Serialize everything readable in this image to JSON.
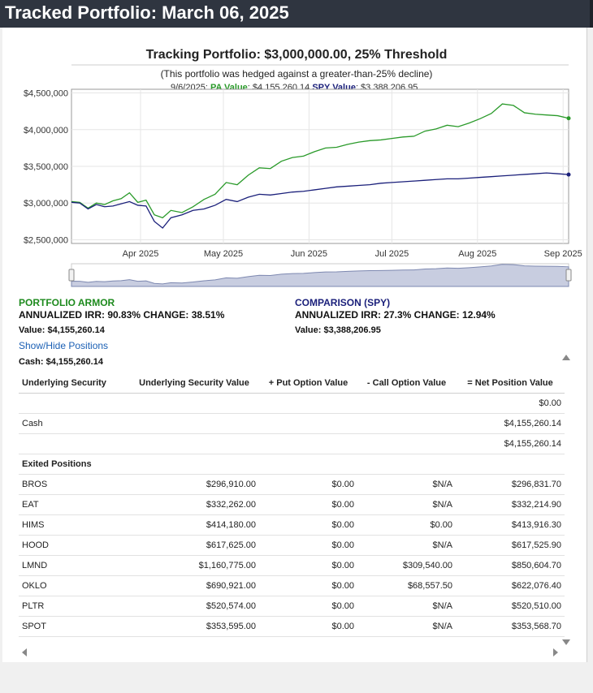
{
  "page": {
    "title": "Tracked Portfolio: March 06, 2025"
  },
  "chart": {
    "title": "Tracking Portfolio: $3,000,000.00, 25% Threshold",
    "subtitle": "(This portfolio was hedged against a greater-than-25% decline)",
    "tooltip": {
      "date": "9/6/2025:",
      "pa_label": "PA Value",
      "pa_value": ": $4,155,260.14",
      "spy_label": "SPY Value",
      "spy_value": ": $3,388,206.95"
    }
  },
  "chart_data": {
    "type": "line",
    "title": "Tracking Portfolio: $3,000,000.00, 25% Threshold",
    "xlabel": "",
    "ylabel": "",
    "x_ticks": [
      "Apr 2025",
      "May 2025",
      "Jun 2025",
      "Jul 2025",
      "Aug 2025",
      "Sep 2025"
    ],
    "y_ticks": [
      "$2,500,000",
      "$3,000,000",
      "$3,500,000",
      "$4,000,000",
      "$4,500,000"
    ],
    "ylim": [
      2450000,
      4550000
    ],
    "xlim": [
      0,
      180
    ],
    "series": [
      {
        "name": "Portfolio Armor",
        "color": "#2a9a2a",
        "x": [
          0,
          3,
          6,
          9,
          12,
          15,
          18,
          21,
          24,
          27,
          30,
          33,
          36,
          40,
          44,
          48,
          52,
          56,
          60,
          64,
          68,
          72,
          76,
          80,
          84,
          88,
          92,
          96,
          100,
          104,
          108,
          112,
          116,
          120,
          124,
          128,
          132,
          136,
          140,
          144,
          148,
          152,
          156,
          160,
          164,
          168,
          172,
          176,
          180
        ],
        "values": [
          3020000,
          3010000,
          2930000,
          3000000,
          2980000,
          3030000,
          3060000,
          3140000,
          3010000,
          3040000,
          2840000,
          2800000,
          2900000,
          2870000,
          2950000,
          3050000,
          3120000,
          3280000,
          3250000,
          3380000,
          3480000,
          3470000,
          3570000,
          3620000,
          3640000,
          3700000,
          3750000,
          3760000,
          3800000,
          3830000,
          3850000,
          3860000,
          3880000,
          3900000,
          3910000,
          3980000,
          4010000,
          4060000,
          4040000,
          4090000,
          4150000,
          4220000,
          4350000,
          4330000,
          4230000,
          4210000,
          4200000,
          4190000,
          4155260
        ]
      },
      {
        "name": "SPY",
        "color": "#1a1f7a",
        "x": [
          0,
          3,
          6,
          9,
          12,
          15,
          18,
          21,
          24,
          27,
          30,
          33,
          36,
          40,
          44,
          48,
          52,
          56,
          60,
          64,
          68,
          72,
          76,
          80,
          84,
          88,
          92,
          96,
          100,
          104,
          108,
          112,
          116,
          120,
          124,
          128,
          132,
          136,
          140,
          144,
          148,
          152,
          156,
          160,
          164,
          168,
          172,
          176,
          180
        ],
        "values": [
          3010000,
          3000000,
          2920000,
          2980000,
          2950000,
          2960000,
          2990000,
          3020000,
          2970000,
          2960000,
          2750000,
          2660000,
          2800000,
          2840000,
          2900000,
          2920000,
          2970000,
          3050000,
          3020000,
          3080000,
          3120000,
          3110000,
          3130000,
          3150000,
          3160000,
          3180000,
          3200000,
          3220000,
          3230000,
          3240000,
          3250000,
          3270000,
          3280000,
          3290000,
          3300000,
          3310000,
          3320000,
          3330000,
          3330000,
          3340000,
          3350000,
          3360000,
          3370000,
          3380000,
          3390000,
          3400000,
          3410000,
          3400000,
          3388207
        ]
      }
    ]
  },
  "legend": {
    "pa": {
      "title": "PORTFOLIO ARMOR",
      "irr": "ANNUALIZED IRR: 90.83% CHANGE: 38.51%",
      "value": "Value: $4,155,260.14"
    },
    "spy": {
      "title": "COMPARISON (SPY)",
      "irr": "ANNUALIZED IRR: 27.3% CHANGE: 12.94%",
      "value": "Value: $3,388,206.95"
    }
  },
  "show_hide_label": "Show/Hide Positions",
  "cash_summary": "Cash: $4,155,260.14",
  "table": {
    "headers": [
      "Underlying Security",
      "Underlying Security Value",
      "+ Put Option Value",
      "- Call Option Value",
      "= Net Position Value"
    ],
    "top_rows": [
      [
        "",
        "",
        "",
        "",
        "$0.00"
      ],
      [
        "Cash",
        "",
        "",
        "",
        "$4,155,260.14"
      ],
      [
        "",
        "",
        "",
        "",
        "$4,155,260.14"
      ]
    ],
    "section_label": "Exited Positions",
    "positions": [
      [
        "BROS",
        "$296,910.00",
        "$0.00",
        "$N/A",
        "$296,831.70"
      ],
      [
        "EAT",
        "$332,262.00",
        "$0.00",
        "$N/A",
        "$332,214.90"
      ],
      [
        "HIMS",
        "$414,180.00",
        "$0.00",
        "$0.00",
        "$413,916.30"
      ],
      [
        "HOOD",
        "$617,625.00",
        "$0.00",
        "$N/A",
        "$617,525.90"
      ],
      [
        "LMND",
        "$1,160,775.00",
        "$0.00",
        "$309,540.00",
        "$850,604.70"
      ],
      [
        "OKLO",
        "$690,921.00",
        "$0.00",
        "$68,557.50",
        "$622,076.40"
      ],
      [
        "PLTR",
        "$520,574.00",
        "$0.00",
        "$N/A",
        "$520,510.00"
      ],
      [
        "SPOT",
        "$353,595.00",
        "$0.00",
        "$N/A",
        "$353,568.70"
      ]
    ]
  }
}
